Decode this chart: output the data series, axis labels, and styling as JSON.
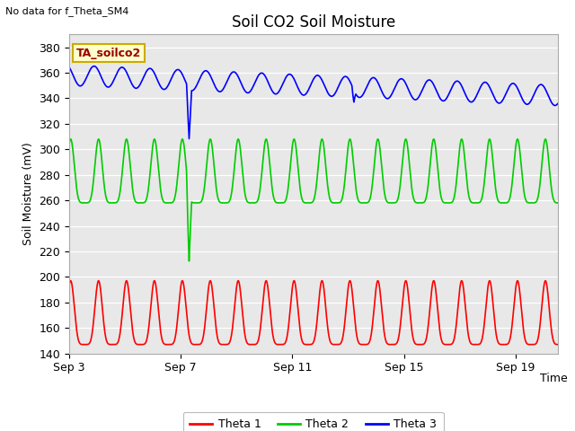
{
  "title": "Soil CO2 Soil Moisture",
  "no_data_text": "No data for f_Theta_SM4",
  "ylabel": "Soil Moisture (mV)",
  "xlabel": "Time",
  "ylim": [
    140,
    390
  ],
  "xlim_start": 0,
  "xlim_end": 17.5,
  "xtick_labels": [
    "Sep 3",
    "Sep 7",
    "Sep 11",
    "Sep 15",
    "Sep 19"
  ],
  "xtick_positions": [
    0,
    4,
    8,
    12,
    16
  ],
  "bg_color": "#e8e8e8",
  "label_box_text": "TA_soilco2",
  "legend_entries": [
    "Theta 1",
    "Theta 2",
    "Theta 3"
  ],
  "legend_colors": [
    "#ff0000",
    "#00cc00",
    "#0000ff"
  ],
  "theta1_base": 147,
  "theta1_amp": 25,
  "theta2_base": 258,
  "theta2_amp": 25,
  "theta3_base": 358,
  "theta3_amp": 8,
  "theta3_drift": -0.9,
  "spike1_blue_day": 4.3,
  "spike1_blue_val": 308,
  "spike2_blue_day": 10.2,
  "spike2_blue_val": 337,
  "spike1_green_day": 4.3,
  "spike1_green_val": 212,
  "freq": 1.0
}
